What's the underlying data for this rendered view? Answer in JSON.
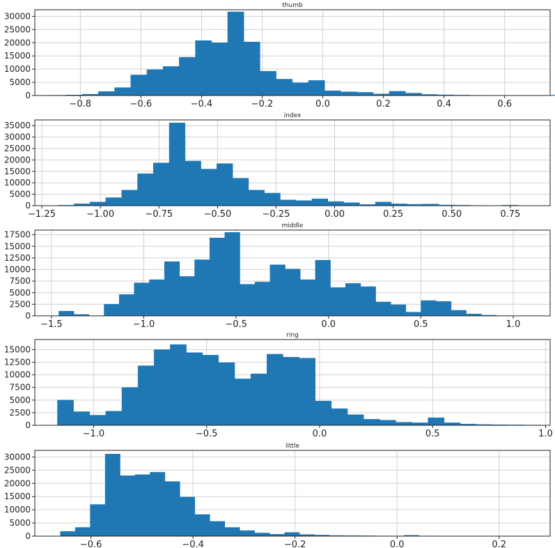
{
  "chart_data": [
    {
      "type": "bar",
      "title": "thumb",
      "xlim": [
        -0.95,
        0.75
      ],
      "ylim": [
        0,
        32500
      ],
      "xticks": [
        -0.8,
        -0.6,
        -0.4,
        -0.2,
        0.0,
        0.2,
        0.4,
        0.6
      ],
      "xtick_labels": [
        "−0.8",
        "−0.6",
        "−0.4",
        "−0.2",
        "0.0",
        "0.2",
        "0.4",
        "0.6"
      ],
      "yticks": [
        0,
        5000,
        10000,
        15000,
        20000,
        25000,
        30000
      ],
      "ytick_labels": [
        "0",
        "5000",
        "10000",
        "15000",
        "20000",
        "25000",
        "30000"
      ],
      "grid": true,
      "bin_start": -0.9,
      "bin_width": 0.0533,
      "counts": [
        100,
        200,
        500,
        1500,
        3000,
        7800,
        9800,
        11000,
        14500,
        20800,
        20000,
        31700,
        20300,
        9200,
        6200,
        4800,
        5700,
        1800,
        1400,
        1200,
        600,
        1600,
        900,
        400,
        250,
        150,
        80,
        60,
        40,
        30,
        20,
        200
      ]
    },
    {
      "type": "bar",
      "title": "index",
      "xlim": [
        -1.28,
        0.92
      ],
      "ylim": [
        0,
        37500
      ],
      "xticks": [
        -1.25,
        -1.0,
        -0.75,
        -0.5,
        -0.25,
        0.0,
        0.25,
        0.5,
        0.75
      ],
      "xtick_labels": [
        "−1.25",
        "−1.00",
        "−0.75",
        "−0.50",
        "−0.25",
        "0.00",
        "0.25",
        "0.50",
        "0.75"
      ],
      "yticks": [
        0,
        5000,
        10000,
        15000,
        20000,
        25000,
        30000,
        35000
      ],
      "ytick_labels": [
        "0",
        "5000",
        "10000",
        "15000",
        "20000",
        "25000",
        "30000",
        "35000"
      ],
      "grid": true,
      "bin_start": -1.18,
      "bin_width": 0.0677,
      "counts": [
        200,
        800,
        1600,
        3500,
        6800,
        14000,
        18700,
        36200,
        19500,
        16000,
        18400,
        12000,
        6800,
        5500,
        2500,
        2200,
        3000,
        1800,
        1300,
        500,
        1600,
        800,
        600,
        700,
        300,
        200,
        100,
        50,
        200,
        30
      ]
    },
    {
      "type": "bar",
      "title": "middle",
      "xlim": [
        -1.59,
        1.2
      ],
      "ylim": [
        0,
        18500
      ],
      "xticks": [
        -1.5,
        -1.0,
        -0.5,
        0.0,
        0.5,
        1.0
      ],
      "xtick_labels": [
        "−1.5",
        "−1.0",
        "−0.5",
        "0.0",
        "0.5",
        "1.0"
      ],
      "yticks": [
        0,
        2500,
        5000,
        7500,
        10000,
        12500,
        15000,
        17500
      ],
      "ytick_labels": [
        "0",
        "2500",
        "5000",
        "7500",
        "10000",
        "12500",
        "15000",
        "17500"
      ],
      "grid": true,
      "bin_start": -1.46,
      "bin_width": 0.0817,
      "counts": [
        1000,
        300,
        0,
        2500,
        4600,
        7100,
        7800,
        11700,
        8500,
        12100,
        16800,
        18000,
        6800,
        7300,
        11000,
        10100,
        7800,
        12000,
        6100,
        7000,
        6300,
        3000,
        2400,
        800,
        3300,
        3100,
        1200,
        400,
        150,
        50
      ]
    },
    {
      "type": "bar",
      "title": "ring",
      "xlim": [
        -1.26,
        1.02
      ],
      "ylim": [
        0,
        17000
      ],
      "xticks": [
        -1.0,
        -0.5,
        0.0,
        0.5,
        1.0
      ],
      "xtick_labels": [
        "−1.0",
        "−0.5",
        "0.0",
        "0.5",
        "1.0"
      ],
      "yticks": [
        0,
        2500,
        5000,
        7500,
        10000,
        12500,
        15000
      ],
      "ytick_labels": [
        "0",
        "2500",
        "5000",
        "7500",
        "10000",
        "12500",
        "15000"
      ],
      "grid": true,
      "bin_start": -1.16,
      "bin_width": 0.0713,
      "counts": [
        5000,
        2700,
        2000,
        2800,
        7500,
        11800,
        15000,
        16000,
        14400,
        13900,
        12400,
        9200,
        10200,
        14100,
        13500,
        13300,
        4800,
        3300,
        2100,
        1200,
        1000,
        600,
        500,
        1500,
        500,
        250,
        150,
        100,
        80,
        50
      ]
    },
    {
      "type": "bar",
      "title": "little",
      "xlim": [
        -0.71,
        0.3
      ],
      "ylim": [
        0,
        32500
      ],
      "xticks": [
        -0.6,
        -0.4,
        -0.2,
        0.0,
        0.2
      ],
      "xtick_labels": [
        "−0.6",
        "−0.4",
        "−0.2",
        "0.0",
        "0.2"
      ],
      "yticks": [
        0,
        5000,
        10000,
        15000,
        20000,
        25000,
        30000
      ],
      "ytick_labels": [
        "0",
        "5000",
        "10000",
        "15000",
        "20000",
        "25000",
        "30000"
      ],
      "grid": true,
      "bin_start": -0.66,
      "bin_width": 0.0293,
      "counts": [
        1800,
        3300,
        12000,
        31100,
        22900,
        23300,
        24200,
        20700,
        14800,
        8200,
        5600,
        3300,
        2100,
        1200,
        700,
        1400,
        600,
        400,
        250,
        200,
        150,
        100,
        80,
        300,
        80,
        40,
        20,
        10
      ]
    }
  ]
}
